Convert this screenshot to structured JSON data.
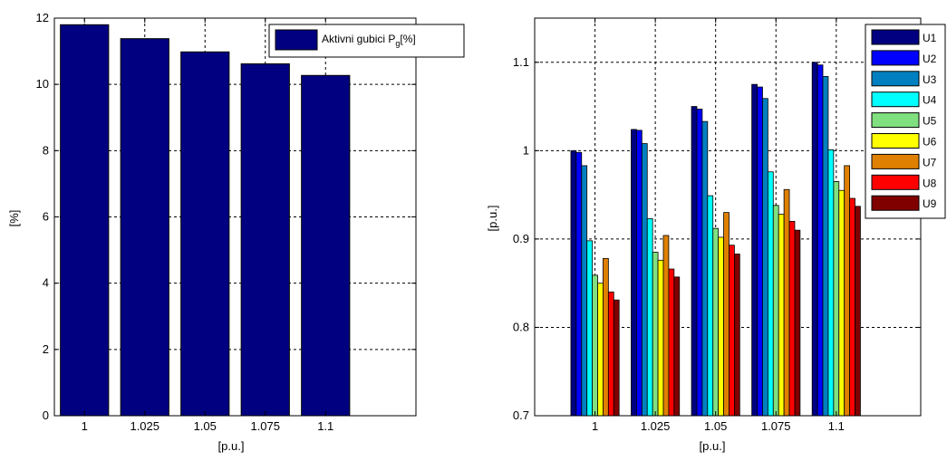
{
  "chart_data": [
    {
      "type": "bar",
      "categories": [
        "1",
        "1.025",
        "1.05",
        "1.075",
        "1.1"
      ],
      "values": [
        11.8,
        11.38,
        10.98,
        10.62,
        10.27
      ],
      "series": [
        {
          "name": "Aktivni gubici P",
          "values": [
            11.8,
            11.38,
            10.98,
            10.62,
            10.27
          ]
        }
      ],
      "legend_text": {
        "main": "Aktivni gubici P",
        "sub": "g",
        "suffix": "[%]"
      },
      "xlabel": "[p.u.]",
      "ylabel": "[%]",
      "ylim": [
        0,
        12
      ],
      "yticks": [
        "0",
        "2",
        "4",
        "6",
        "8",
        "10",
        "12"
      ],
      "grid": true,
      "legend_position": "top-right",
      "bar_color": "#000080"
    },
    {
      "type": "bar",
      "categories": [
        "1",
        "1.025",
        "1.05",
        "1.075",
        "1.1"
      ],
      "series": [
        {
          "name": "U1",
          "color": "#000080",
          "values": [
            1.0,
            1.024,
            1.05,
            1.075,
            1.1
          ]
        },
        {
          "name": "U2",
          "color": "#0000ff",
          "values": [
            0.998,
            1.023,
            1.047,
            1.072,
            1.097
          ]
        },
        {
          "name": "U3",
          "color": "#0080c0",
          "values": [
            0.983,
            1.008,
            1.033,
            1.059,
            1.084
          ]
        },
        {
          "name": "U4",
          "color": "#00ffff",
          "values": [
            0.898,
            0.923,
            0.949,
            0.976,
            1.001
          ]
        },
        {
          "name": "U5",
          "color": "#80e080",
          "values": [
            0.859,
            0.885,
            0.912,
            0.938,
            0.965
          ]
        },
        {
          "name": "U6",
          "color": "#ffff00",
          "values": [
            0.85,
            0.876,
            0.902,
            0.928,
            0.955
          ]
        },
        {
          "name": "U7",
          "color": "#e08000",
          "values": [
            0.878,
            0.904,
            0.93,
            0.956,
            0.983
          ]
        },
        {
          "name": "U8",
          "color": "#ff0000",
          "values": [
            0.84,
            0.866,
            0.893,
            0.92,
            0.946
          ]
        },
        {
          "name": "U9",
          "color": "#800000",
          "values": [
            0.831,
            0.857,
            0.883,
            0.91,
            0.937
          ]
        }
      ],
      "xlabel": "[p.u.]",
      "ylabel": "[p.u.]",
      "ylim": [
        0.7,
        1.15
      ],
      "yticks": [
        "0.7",
        "0.8",
        "0.9",
        "1",
        "1.1"
      ],
      "grid": true,
      "legend_position": "top-right"
    }
  ]
}
